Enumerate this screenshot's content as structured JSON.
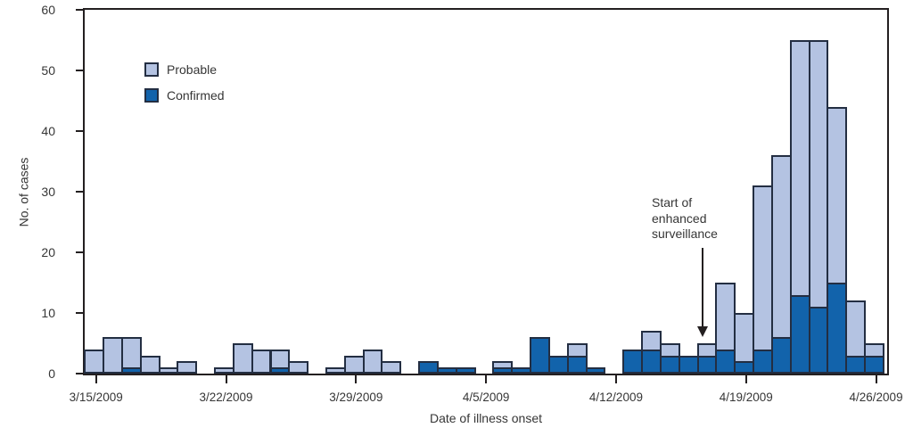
{
  "chart_data": {
    "type": "bar",
    "stacked": true,
    "title": "",
    "xlabel": "Date of illness onset",
    "ylabel": "No. of cases",
    "ylim": [
      0,
      60
    ],
    "yticks": [
      0,
      10,
      20,
      30,
      40,
      50,
      60
    ],
    "xtick_labels": [
      "3/15/2009",
      "3/22/2009",
      "3/29/2009",
      "4/5/2009",
      "4/12/2009",
      "4/19/2009",
      "4/26/2009"
    ],
    "xtick_day_indices": [
      0,
      7,
      14,
      21,
      28,
      35,
      42
    ],
    "grid": false,
    "legend_position": "upper-left-inside",
    "colors": {
      "probable": "#b4c3e2",
      "confirmed": "#1263ab",
      "outline": "#232e42",
      "axis": "#231f20"
    },
    "legend": [
      {
        "name": "Probable",
        "color": "#b4c3e2"
      },
      {
        "name": "Confirmed",
        "color": "#1263ab"
      }
    ],
    "dates": [
      "3/15",
      "3/16",
      "3/17",
      "3/18",
      "3/19",
      "3/20",
      "3/21",
      "3/22",
      "3/23",
      "3/24",
      "3/25",
      "3/26",
      "3/27",
      "3/28",
      "3/29",
      "3/30",
      "3/31",
      "4/1",
      "4/2",
      "4/3",
      "4/4",
      "4/5",
      "4/6",
      "4/7",
      "4/8",
      "4/9",
      "4/10",
      "4/11",
      "4/12",
      "4/13",
      "4/14",
      "4/15",
      "4/16",
      "4/17",
      "4/18",
      "4/19",
      "4/20",
      "4/21",
      "4/22",
      "4/23",
      "4/24",
      "4/25",
      "4/26"
    ],
    "series": [
      {
        "name": "Confirmed",
        "values": [
          0,
          0,
          1,
          0,
          0,
          0,
          0,
          0,
          0,
          0,
          1,
          0,
          0,
          0,
          0,
          0,
          0,
          0,
          2,
          1,
          1,
          0,
          1,
          1,
          6,
          3,
          3,
          1,
          0,
          4,
          4,
          3,
          3,
          3,
          4,
          2,
          4,
          6,
          13,
          11,
          15,
          3,
          3
        ]
      },
      {
        "name": "Probable",
        "values": [
          4,
          6,
          5,
          3,
          1,
          2,
          0,
          1,
          5,
          4,
          3,
          2,
          0,
          1,
          3,
          4,
          2,
          0,
          0,
          0,
          0,
          0,
          1,
          0,
          0,
          0,
          2,
          0,
          0,
          0,
          3,
          2,
          0,
          2,
          11,
          8,
          27,
          30,
          42,
          44,
          29,
          9,
          2
        ]
      }
    ],
    "totals": [
      4,
      6,
      6,
      3,
      1,
      2,
      0,
      1,
      5,
      4,
      4,
      2,
      0,
      1,
      3,
      4,
      2,
      0,
      2,
      1,
      1,
      0,
      2,
      1,
      6,
      3,
      5,
      1,
      0,
      4,
      7,
      5,
      3,
      5,
      15,
      10,
      31,
      36,
      55,
      55,
      44,
      12,
      5
    ],
    "annotation": {
      "lines": [
        "Start of",
        "enhanced",
        "surveillance"
      ],
      "arrow_day_index": 33
    }
  }
}
